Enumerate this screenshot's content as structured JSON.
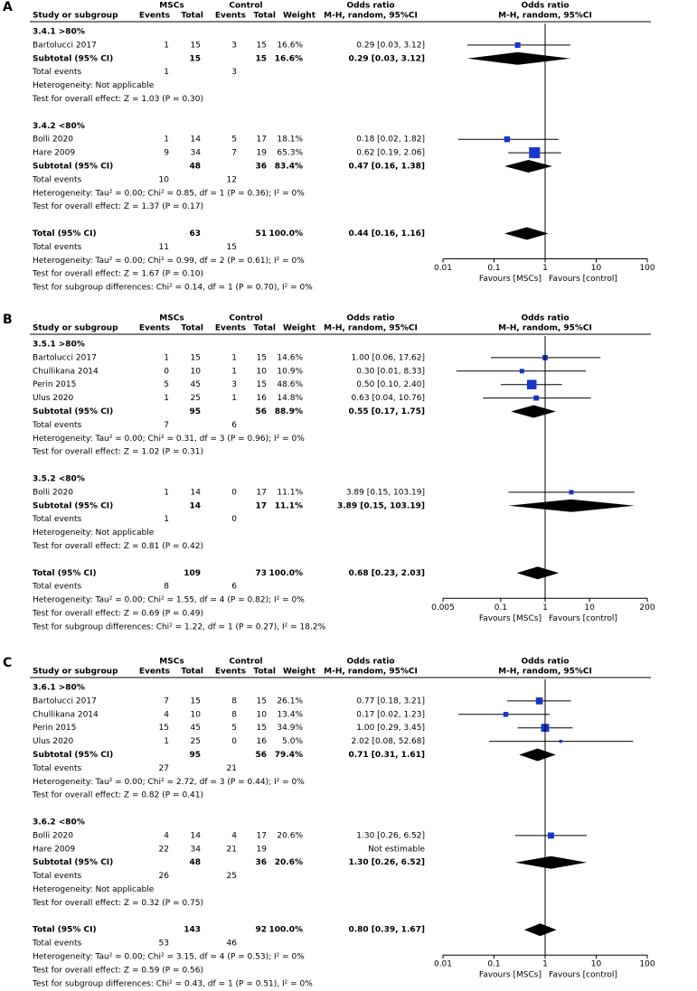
{
  "chart_data": [
    {
      "type": "forest",
      "panel": "A",
      "log_scale": true,
      "color": "#1a35c8",
      "headers": {
        "group1": "MSCs",
        "group2": "Control",
        "study": "Study or subgroup",
        "events1": "Events",
        "total1": "Total",
        "events2": "Events",
        "total2": "Total",
        "weight": "Weight",
        "or_table": "Odds ratio",
        "method_table": "M-H, random, 95%CI",
        "or_plot": "Odds ratio",
        "method_plot": "M-H, random, 95%CI"
      },
      "subgroups": [
        {
          "name": "3.4.1 >80%",
          "studies": [
            {
              "name": "Bartolucci 2017",
              "events1": 1,
              "total1": 15,
              "events2": 3,
              "total2": 15,
              "weight": 16.6,
              "weight_label": "16.6%",
              "or": 0.29,
              "lo": 0.03,
              "hi": 3.12,
              "ci_label": "0.29 [0.03, 3.12]"
            }
          ],
          "subtotal": {
            "name": "Subtotal (95% CI)",
            "total1": 15,
            "total2": 15,
            "weight_label": "16.6%",
            "or": 0.29,
            "lo": 0.03,
            "hi": 3.12,
            "ci_label": "0.29 [0.03, 3.12]"
          },
          "events": {
            "name": "Total events",
            "events1": 1,
            "events2": 3
          },
          "heterogeneity": "Heterogeneity: Not applicable",
          "overall": "Test for overall effect: Z = 1.03 (P = 0.30)"
        },
        {
          "name": "3.4.2 <80%",
          "studies": [
            {
              "name": "Bolli 2020",
              "events1": 1,
              "total1": 14,
              "events2": 5,
              "total2": 17,
              "weight": 18.1,
              "weight_label": "18.1%",
              "or": 0.18,
              "lo": 0.02,
              "hi": 1.82,
              "ci_label": "0.18 [0.02, 1.82]"
            },
            {
              "name": "Hare 2009",
              "events1": 9,
              "total1": 34,
              "events2": 7,
              "total2": 19,
              "weight": 65.3,
              "weight_label": "65.3%",
              "or": 0.62,
              "lo": 0.19,
              "hi": 2.06,
              "ci_label": "0.62 [0.19, 2.06]"
            }
          ],
          "subtotal": {
            "name": "Subtotal (95% CI)",
            "total1": 48,
            "total2": 36,
            "weight_label": "83.4%",
            "or": 0.47,
            "lo": 0.16,
            "hi": 1.38,
            "ci_label": "0.47 [0.16, 1.38]"
          },
          "events": {
            "name": "Total events",
            "events1": 10,
            "events2": 12
          },
          "heterogeneity": "Heterogeneity: Tau² = 0.00; Chi² = 0.85, df = 1 (P = 0.36); I² = 0%",
          "overall": "Test for overall effect: Z = 1.37 (P = 0.17)"
        }
      ],
      "total": {
        "name": "Total (95% CI)",
        "total1": 63,
        "total2": 51,
        "weight_label": "100.0%",
        "or": 0.44,
        "lo": 0.16,
        "hi": 1.16,
        "ci_label": "0.44 [0.16, 1.16]"
      },
      "total_events": {
        "name": "Total events",
        "events1": 11,
        "events2": 15
      },
      "heterogeneity": "Heterogeneity: Tau² = 0.00; Chi² = 0.99, df = 2 (P = 0.61); I² = 0%",
      "overall": "Test for overall effect: Z = 1.67 (P = 0.10)",
      "subgroup_differences": "Test for subgroup differences: Chi² = 0.14, df = 1 (P = 0.70), I² = 0%",
      "xlim": [
        0.01,
        100
      ],
      "xticks": [
        0.01,
        0.1,
        1,
        10,
        100
      ],
      "favours_left": "Favours [MSCs]",
      "favours_right": "Favours [control]"
    },
    {
      "type": "forest",
      "panel": "B",
      "log_scale": true,
      "color": "#1a35c8",
      "headers": {
        "group1": "MSCs",
        "group2": "Control",
        "study": "Study or subgroup",
        "events1": "Events",
        "total1": "Total",
        "events2": "Events",
        "total2": "Total",
        "weight": "Weight",
        "or_table": "Odds ratio",
        "method_table": "M-H, random, 95%CI",
        "or_plot": "Odds ratio",
        "method_plot": "M-H, random, 95%CI"
      },
      "subgroups": [
        {
          "name": "3.5.1 >80%",
          "studies": [
            {
              "name": "Bartolucci 2017",
              "events1": 1,
              "total1": 15,
              "events2": 1,
              "total2": 15,
              "weight": 14.6,
              "weight_label": "14.6%",
              "or": 1.0,
              "lo": 0.06,
              "hi": 17.62,
              "ci_label": "1.00 [0.06, 17.62]"
            },
            {
              "name": "Chullikana 2014",
              "events1": 0,
              "total1": 10,
              "events2": 1,
              "total2": 10,
              "weight": 10.9,
              "weight_label": "10.9%",
              "or": 0.3,
              "lo": 0.01,
              "hi": 8.33,
              "ci_label": "0.30 [0.01, 8.33]"
            },
            {
              "name": "Perin 2015",
              "events1": 5,
              "total1": 45,
              "events2": 3,
              "total2": 15,
              "weight": 48.6,
              "weight_label": "48.6%",
              "or": 0.5,
              "lo": 0.1,
              "hi": 2.4,
              "ci_label": "0.50 [0.10, 2.40]"
            },
            {
              "name": "Ulus 2020",
              "events1": 1,
              "total1": 25,
              "events2": 1,
              "total2": 16,
              "weight": 14.8,
              "weight_label": "14.8%",
              "or": 0.63,
              "lo": 0.04,
              "hi": 10.76,
              "ci_label": "0.63 [0.04, 10.76]"
            }
          ],
          "subtotal": {
            "name": "Subtotal (95% CI)",
            "total1": 95,
            "total2": 56,
            "weight_label": "88.9%",
            "or": 0.55,
            "lo": 0.17,
            "hi": 1.75,
            "ci_label": "0.55 [0.17, 1.75]"
          },
          "events": {
            "name": "Total events",
            "events1": 7,
            "events2": 6
          },
          "heterogeneity": "Heterogeneity: Tau² = 0.00; Chi² = 0.31, df = 3 (P = 0.96); I² = 0%",
          "overall": "Test for overall effect: Z = 1.02 (P = 0.31)"
        },
        {
          "name": "3.5.2 <80%",
          "studies": [
            {
              "name": "Bolli 2020",
              "events1": 1,
              "total1": 14,
              "events2": 0,
              "total2": 17,
              "weight": 11.1,
              "weight_label": "11.1%",
              "or": 3.89,
              "lo": 0.15,
              "hi": 103.19,
              "ci_label": "3.89 [0.15, 103.19]"
            }
          ],
          "subtotal": {
            "name": "Subtotal (95% CI)",
            "total1": 14,
            "total2": 17,
            "weight_label": "11.1%",
            "or": 3.89,
            "lo": 0.15,
            "hi": 103.19,
            "ci_label": "3.89 [0.15, 103.19]"
          },
          "events": {
            "name": "Total events",
            "events1": 1,
            "events2": 0
          },
          "heterogeneity": "Heterogeneity: Not applicable",
          "overall": "Test for overall effect: Z = 0.81 (P = 0.42)"
        }
      ],
      "total": {
        "name": "Total (95% CI)",
        "total1": 109,
        "total2": 73,
        "weight_label": "100.0%",
        "or": 0.68,
        "lo": 0.23,
        "hi": 2.03,
        "ci_label": "0.68 [0.23, 2.03]"
      },
      "total_events": {
        "name": "Total events",
        "events1": 8,
        "events2": 6
      },
      "heterogeneity": "Heterogeneity: Tau² = 0.00; Chi² = 1.55, df = 4 (P = 0.82); I² = 0%",
      "overall": "Test for overall effect: Z = 0.69 (P = 0.49)",
      "subgroup_differences": "Test for subgroup differences: Chi² = 1.22, df = 1 (P = 0.27), I² = 18.2%",
      "xlim": [
        0.005,
        200
      ],
      "xticks": [
        0.005,
        0.1,
        1,
        10,
        200
      ],
      "favours_left": "Favours [MSCs]",
      "favours_right": "Favours [control]"
    },
    {
      "type": "forest",
      "panel": "C",
      "log_scale": true,
      "color": "#1a35c8",
      "headers": {
        "group1": "MSCs",
        "group2": "Control",
        "study": "Study or subgroup",
        "events1": "Events",
        "total1": "Total",
        "events2": "Events",
        "total2": "Total",
        "weight": "Weight",
        "or_table": "Odds ratio",
        "method_table": "M-H, random, 95%CI",
        "or_plot": "Odds ratio",
        "method_plot": "M-H, random, 95%CI"
      },
      "subgroups": [
        {
          "name": "3.6.1 >80%",
          "studies": [
            {
              "name": "Bartolucci 2017",
              "events1": 7,
              "total1": 15,
              "events2": 8,
              "total2": 15,
              "weight": 26.1,
              "weight_label": "26.1%",
              "or": 0.77,
              "lo": 0.18,
              "hi": 3.21,
              "ci_label": "0.77 [0.18, 3.21]"
            },
            {
              "name": "Chullikana 2014",
              "events1": 4,
              "total1": 10,
              "events2": 8,
              "total2": 10,
              "weight": 13.4,
              "weight_label": "13.4%",
              "or": 0.17,
              "lo": 0.02,
              "hi": 1.23,
              "ci_label": "0.17 [0.02, 1.23]"
            },
            {
              "name": "Perin 2015",
              "events1": 15,
              "total1": 45,
              "events2": 5,
              "total2": 15,
              "weight": 34.9,
              "weight_label": "34.9%",
              "or": 1.0,
              "lo": 0.29,
              "hi": 3.45,
              "ci_label": "1.00 [0.29, 3.45]"
            },
            {
              "name": "Ulus 2020",
              "events1": 1,
              "total1": 25,
              "events2": 0,
              "total2": 16,
              "weight": 5.0,
              "weight_label": "5.0%",
              "or": 2.02,
              "lo": 0.08,
              "hi": 52.68,
              "ci_label": "2.02 [0.08, 52.68]"
            }
          ],
          "subtotal": {
            "name": "Subtotal (95% CI)",
            "total1": 95,
            "total2": 56,
            "weight_label": "79.4%",
            "or": 0.71,
            "lo": 0.31,
            "hi": 1.61,
            "ci_label": "0.71 [0.31, 1.61]"
          },
          "events": {
            "name": "Total events",
            "events1": 27,
            "events2": 21
          },
          "heterogeneity": "Heterogeneity: Tau² = 0.00; Chi² = 2.72, df = 3 (P = 0.44); I² = 0%",
          "overall": "Test for overall effect: Z = 0.82 (P = 0.41)"
        },
        {
          "name": "3.6.2 <80%",
          "studies": [
            {
              "name": "Bolli 2020",
              "events1": 4,
              "total1": 14,
              "events2": 4,
              "total2": 17,
              "weight": 20.6,
              "weight_label": "20.6%",
              "or": 1.3,
              "lo": 0.26,
              "hi": 6.52,
              "ci_label": "1.30 [0.26, 6.52]"
            },
            {
              "name": "Hare 2009",
              "events1": 22,
              "total1": 34,
              "events2": 21,
              "total2": 19,
              "ci_label": "Not estimable"
            }
          ],
          "subtotal": {
            "name": "Subtotal (95% CI)",
            "total1": 48,
            "total2": 36,
            "weight_label": "20.6%",
            "or": 1.3,
            "lo": 0.26,
            "hi": 6.52,
            "ci_label": "1.30 [0.26, 6.52]"
          },
          "events": {
            "name": "Total events",
            "events1": 26,
            "events2": 25
          },
          "heterogeneity": "Heterogeneity: Not applicable",
          "overall": "Test for overall effect: Z = 0.32 (P = 0.75)"
        }
      ],
      "total": {
        "name": "Total (95% CI)",
        "total1": 143,
        "total2": 92,
        "weight_label": "100.0%",
        "or": 0.8,
        "lo": 0.39,
        "hi": 1.67,
        "ci_label": "0.80 [0.39, 1.67]"
      },
      "total_events": {
        "name": "Total events",
        "events1": 53,
        "events2": 46
      },
      "heterogeneity": "Heterogeneity: Tau² = 0.00; Chi² = 3.15, df = 4 (P = 0.53); I² = 0%",
      "overall": "Test for overall effect: Z = 0.59 (P = 0.56)",
      "subgroup_differences": "Test for subgroup differences: Chi² = 0.43, df = 1 (P = 0.51), I² = 0%",
      "xlim": [
        0.01,
        100
      ],
      "xticks": [
        0.01,
        0.1,
        1,
        10,
        100
      ],
      "favours_left": "Favours [MSCs]",
      "favours_right": "Favours [control]"
    }
  ]
}
